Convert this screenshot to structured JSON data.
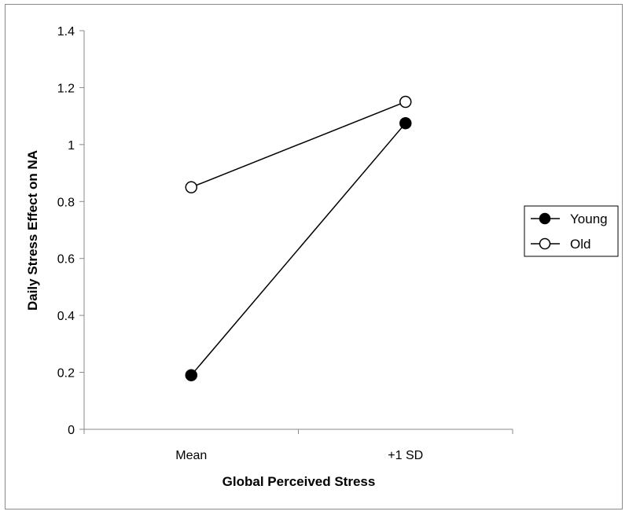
{
  "chart_data": {
    "type": "line",
    "categories": [
      "Mean",
      "+1 SD"
    ],
    "series": [
      {
        "name": "Young",
        "values": [
          0.19,
          1.075
        ],
        "marker": "filled-circle",
        "color": "#000000"
      },
      {
        "name": "Old",
        "values": [
          0.85,
          1.15
        ],
        "marker": "open-circle",
        "color": "#000000"
      }
    ],
    "title": "",
    "xlabel": "Global Perceived Stress",
    "ylabel": "Daily Stress Effect on NA",
    "ylim": [
      0,
      1.4
    ],
    "yticks": [
      "0",
      "0.2",
      "0.4",
      "0.6",
      "0.8",
      "1",
      "1.2",
      "1.4"
    ],
    "grid": false,
    "legend_position": "right"
  }
}
